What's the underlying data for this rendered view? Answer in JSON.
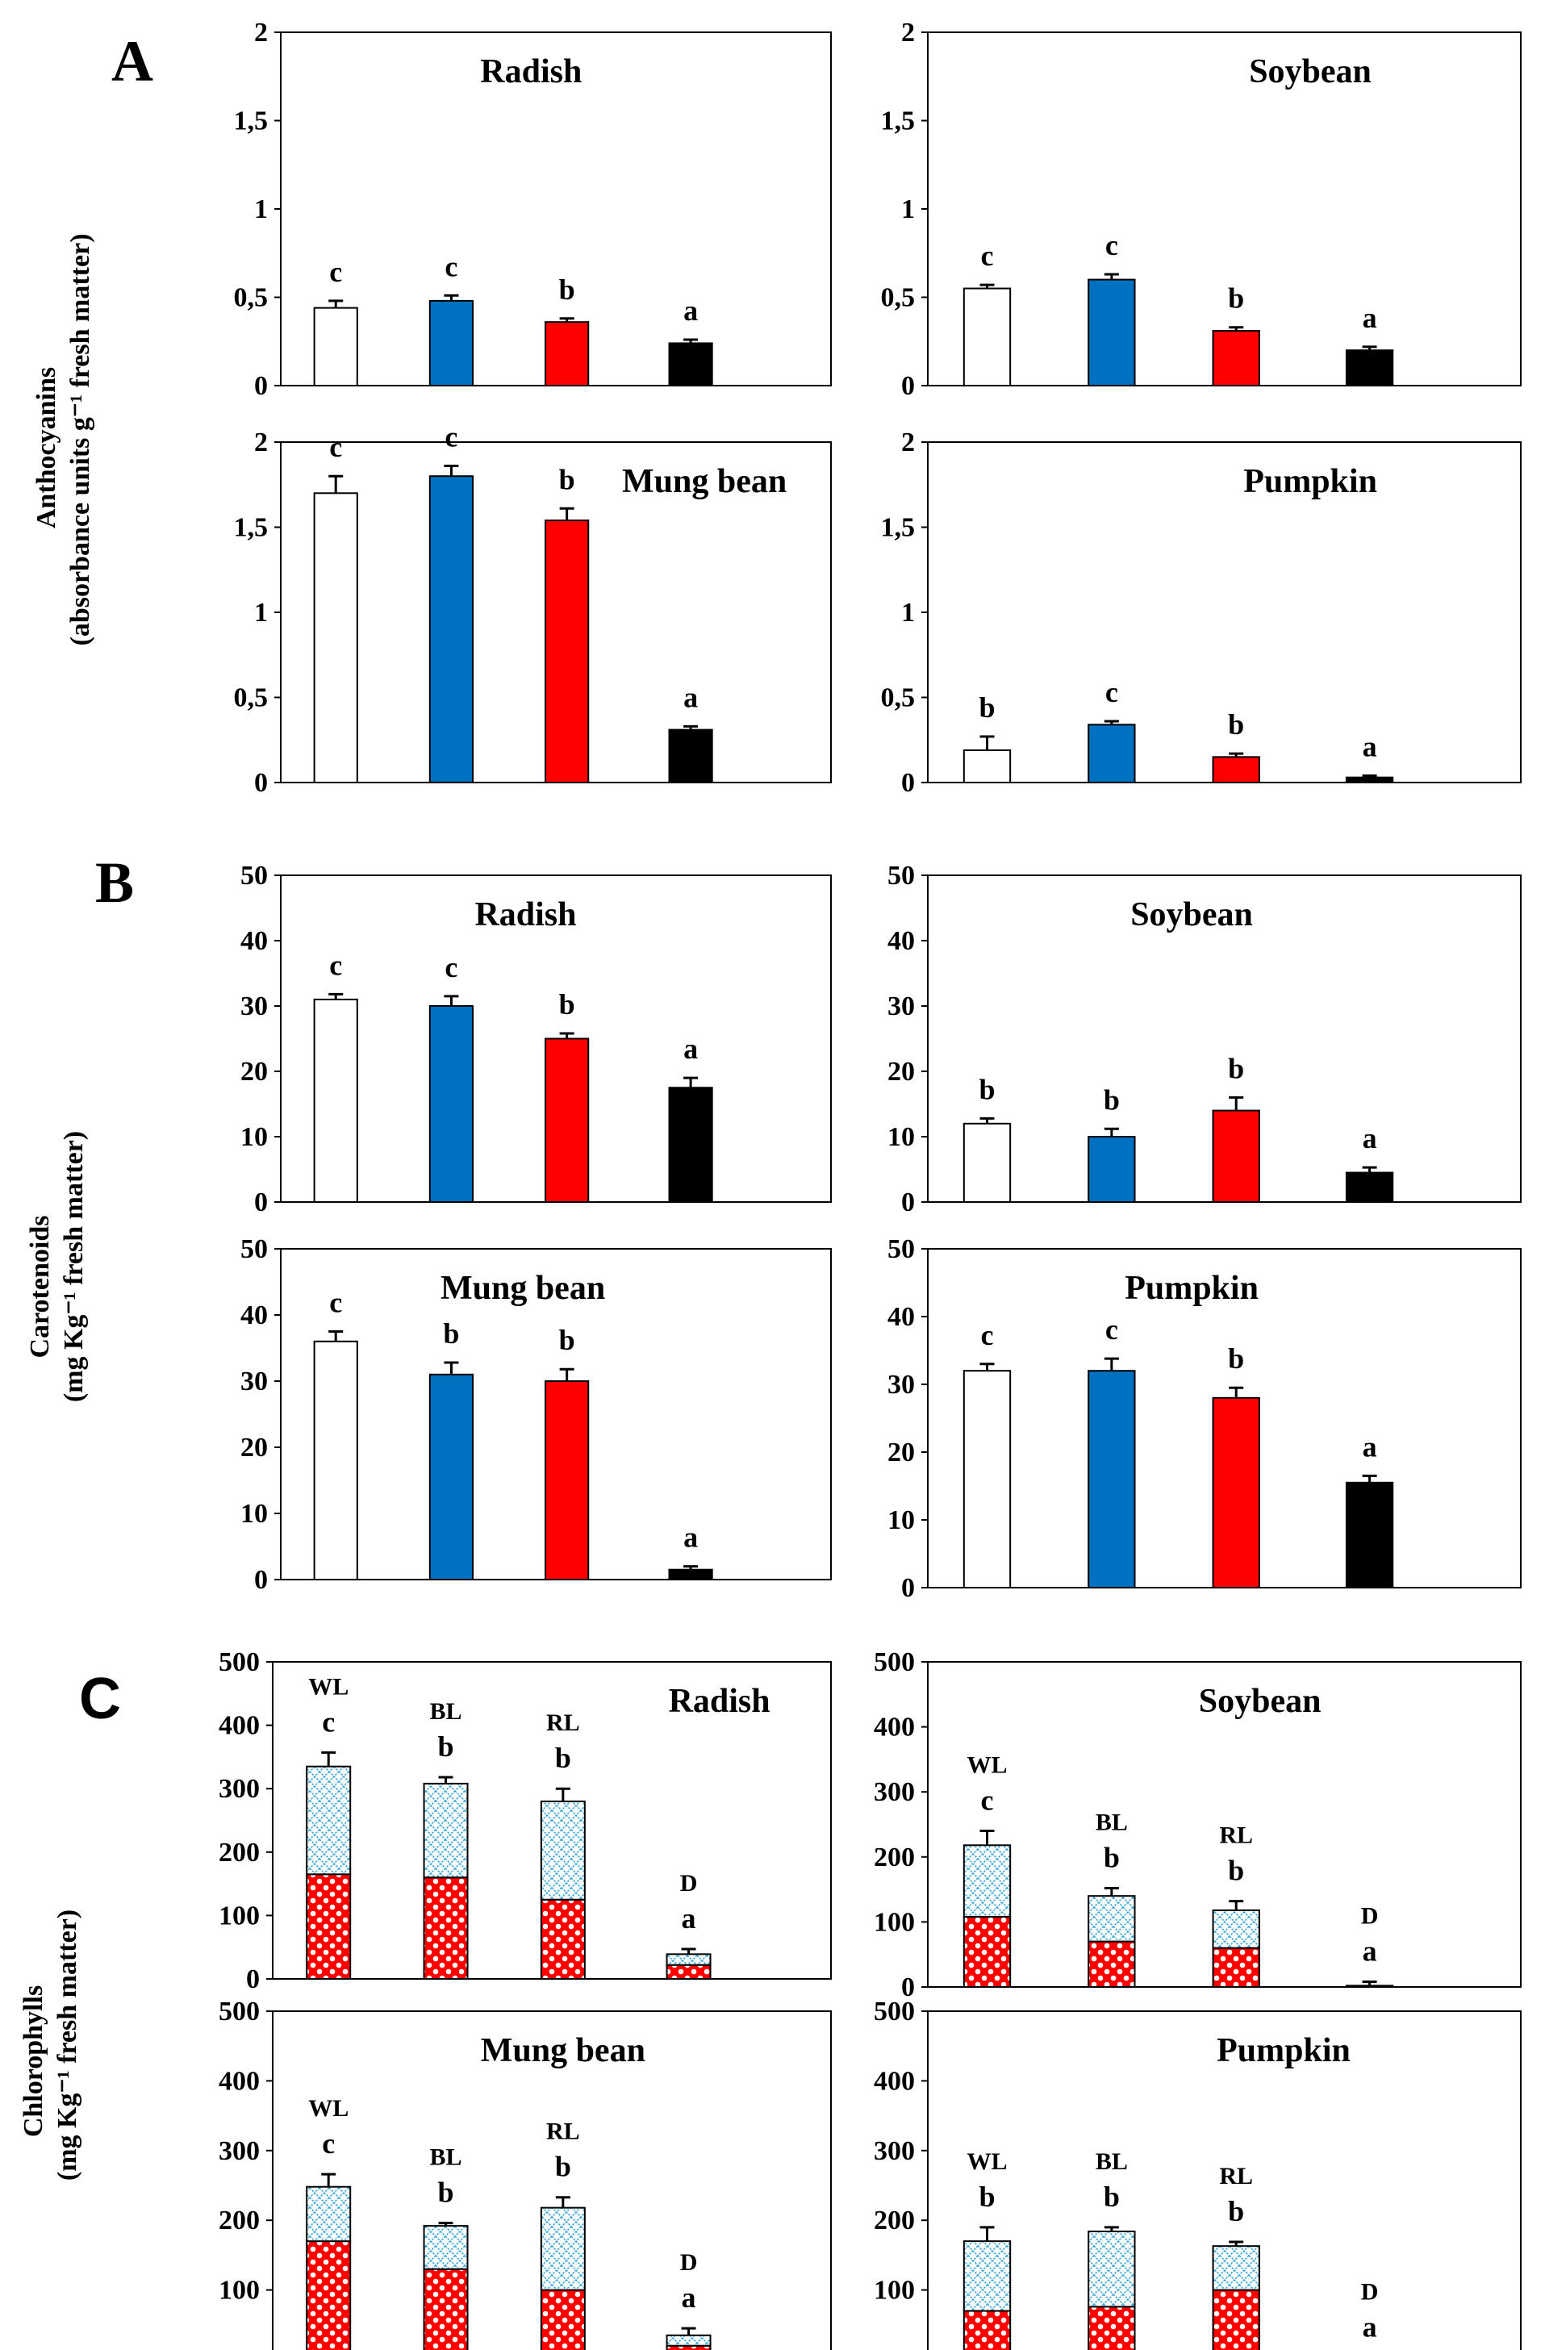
{
  "figure": {
    "section_letters": [
      "A",
      "B",
      "C"
    ],
    "ylabel_A": [
      "Anthocyanins",
      "(absorbance units g⁻¹ fresh matter)"
    ],
    "ylabel_B": [
      "Carotenoids",
      "(mg Kg⁻¹ fresh matter)"
    ],
    "ylabel_C": [
      "Chlorophylls",
      "(mg Kg⁻¹ fresh matter)"
    ]
  },
  "colors": {
    "WL": "#ffffff",
    "BL": "#0070c0",
    "RL": "#ff0000",
    "D": "#000000",
    "chl_a": "#ff0000",
    "chl_b": "#a8dcf0"
  },
  "chart_data": [
    {
      "type": "bar",
      "section": "A",
      "title": "Radish",
      "categories": [
        "WL",
        "BL",
        "RL",
        "D"
      ],
      "values": [
        0.44,
        0.48,
        0.36,
        0.24
      ],
      "errors": [
        0.04,
        0.03,
        0.02,
        0.02
      ],
      "letters": [
        "c",
        "c",
        "b",
        "a"
      ],
      "yticks": [
        "0",
        "0,5",
        "1",
        "1,5",
        "2"
      ],
      "ylim": [
        0,
        2
      ]
    },
    {
      "type": "bar",
      "section": "A",
      "title": "Soybean",
      "categories": [
        "WL",
        "BL",
        "RL",
        "D"
      ],
      "values": [
        0.55,
        0.6,
        0.31,
        0.2
      ],
      "errors": [
        0.02,
        0.03,
        0.02,
        0.02
      ],
      "letters": [
        "c",
        "c",
        "b",
        "a"
      ],
      "yticks": [
        "0",
        "0,5",
        "1",
        "1,5",
        "2"
      ],
      "ylim": [
        0,
        2
      ]
    },
    {
      "type": "bar",
      "section": "A",
      "title": "Mung bean",
      "categories": [
        "WL",
        "BL",
        "RL",
        "D"
      ],
      "values": [
        1.7,
        1.8,
        1.54,
        0.31
      ],
      "errors": [
        0.1,
        0.06,
        0.07,
        0.02
      ],
      "letters": [
        "c",
        "c",
        "b",
        "a"
      ],
      "yticks": [
        "0",
        "0,5",
        "1",
        "1,5",
        "2"
      ],
      "ylim": [
        0,
        2
      ]
    },
    {
      "type": "bar",
      "section": "A",
      "title": "Pumpkin",
      "categories": [
        "WL",
        "BL",
        "RL",
        "D"
      ],
      "values": [
        0.19,
        0.34,
        0.15,
        0.03
      ],
      "errors": [
        0.08,
        0.02,
        0.02,
        0.01
      ],
      "letters": [
        "b",
        "c",
        "b",
        "a"
      ],
      "yticks": [
        "0",
        "0,5",
        "1",
        "1,5",
        "2"
      ],
      "ylim": [
        0,
        2
      ]
    },
    {
      "type": "bar",
      "section": "B",
      "title": "Radish",
      "categories": [
        "WL",
        "BL",
        "RL",
        "D"
      ],
      "values": [
        31,
        30,
        25,
        17.5
      ],
      "errors": [
        0.8,
        1.5,
        0.8,
        1.5
      ],
      "letters": [
        "c",
        "c",
        "b",
        "a"
      ],
      "yticks": [
        "0",
        "10",
        "20",
        "30",
        "40",
        "50"
      ],
      "ylim": [
        0,
        50
      ]
    },
    {
      "type": "bar",
      "section": "B",
      "title": "Soybean",
      "categories": [
        "WL",
        "BL",
        "RL",
        "D"
      ],
      "values": [
        12,
        10,
        14,
        4.5
      ],
      "errors": [
        0.8,
        1.2,
        2,
        0.8
      ],
      "letters": [
        "b",
        "b",
        "b",
        "a"
      ],
      "yticks": [
        "0",
        "10",
        "20",
        "30",
        "40",
        "50"
      ],
      "ylim": [
        0,
        50
      ]
    },
    {
      "type": "bar",
      "section": "B",
      "title": "Mung bean",
      "categories": [
        "WL",
        "BL",
        "RL",
        "D"
      ],
      "values": [
        36,
        31,
        30,
        1.5
      ],
      "errors": [
        1.5,
        1.8,
        1.8,
        0.5
      ],
      "letters": [
        "c",
        "b",
        "b",
        "a"
      ],
      "yticks": [
        "0",
        "10",
        "20",
        "30",
        "40",
        "50"
      ],
      "ylim": [
        0,
        50
      ]
    },
    {
      "type": "bar",
      "section": "B",
      "title": "Pumpkin",
      "categories": [
        "WL",
        "BL",
        "RL",
        "D"
      ],
      "values": [
        32,
        32,
        28,
        15.5
      ],
      "errors": [
        1,
        1.8,
        1.5,
        1
      ],
      "letters": [
        "c",
        "c",
        "b",
        "a"
      ],
      "yticks": [
        "0",
        "10",
        "20",
        "30",
        "40",
        "50"
      ],
      "ylim": [
        0,
        50
      ]
    },
    {
      "type": "bar",
      "stacked": true,
      "section": "C",
      "title": "Radish",
      "categories": [
        "WL",
        "BL",
        "RL",
        "D"
      ],
      "series": [
        {
          "name": "chlorophyll a",
          "values": [
            165,
            160,
            125,
            22
          ]
        },
        {
          "name": "chlorophyll b",
          "values": [
            170,
            148,
            155,
            17
          ]
        }
      ],
      "errors": [
        22,
        10,
        20,
        8
      ],
      "letters": [
        "c",
        "b",
        "b",
        "a"
      ],
      "yticks": [
        "0",
        "100",
        "200",
        "300",
        "400",
        "500"
      ],
      "ylim": [
        0,
        500
      ]
    },
    {
      "type": "bar",
      "stacked": true,
      "section": "C",
      "title": "Soybean",
      "categories": [
        "WL",
        "BL",
        "RL",
        "D"
      ],
      "series": [
        {
          "name": "chlorophyll a",
          "values": [
            108,
            70,
            60,
            1
          ]
        },
        {
          "name": "chlorophyll b",
          "values": [
            110,
            70,
            58,
            1
          ]
        }
      ],
      "errors": [
        22,
        12,
        14,
        6
      ],
      "letters": [
        "c",
        "b",
        "b",
        "a"
      ],
      "yticks": [
        "0",
        "100",
        "200",
        "300",
        "400",
        "500"
      ],
      "ylim": [
        0,
        500
      ]
    },
    {
      "type": "bar",
      "stacked": true,
      "section": "C",
      "title": "Mung bean",
      "categories": [
        "WL",
        "BL",
        "RL",
        "D"
      ],
      "series": [
        {
          "name": "chlorophyll a",
          "values": [
            170,
            130,
            100,
            20
          ]
        },
        {
          "name": "chlorophyll b",
          "values": [
            78,
            62,
            118,
            15
          ]
        }
      ],
      "errors": [
        18,
        4,
        15,
        10
      ],
      "letters": [
        "c",
        "b",
        "b",
        "a"
      ],
      "yticks": [
        "0",
        "100",
        "200",
        "300",
        "400",
        "500"
      ],
      "ylim": [
        0,
        500
      ]
    },
    {
      "type": "bar",
      "stacked": true,
      "section": "C",
      "title": "Pumpkin",
      "categories": [
        "WL",
        "BL",
        "RL",
        "D"
      ],
      "series": [
        {
          "name": "chlorophyll a",
          "values": [
            70,
            76,
            100,
            1
          ]
        },
        {
          "name": "chlorophyll b",
          "values": [
            100,
            108,
            63,
            1
          ]
        }
      ],
      "errors": [
        20,
        6,
        6,
        1
      ],
      "letters": [
        "b",
        "b",
        "b",
        "a"
      ],
      "yticks": [
        "0",
        "100",
        "200",
        "300",
        "400",
        "500"
      ],
      "ylim": [
        0,
        500
      ]
    }
  ]
}
